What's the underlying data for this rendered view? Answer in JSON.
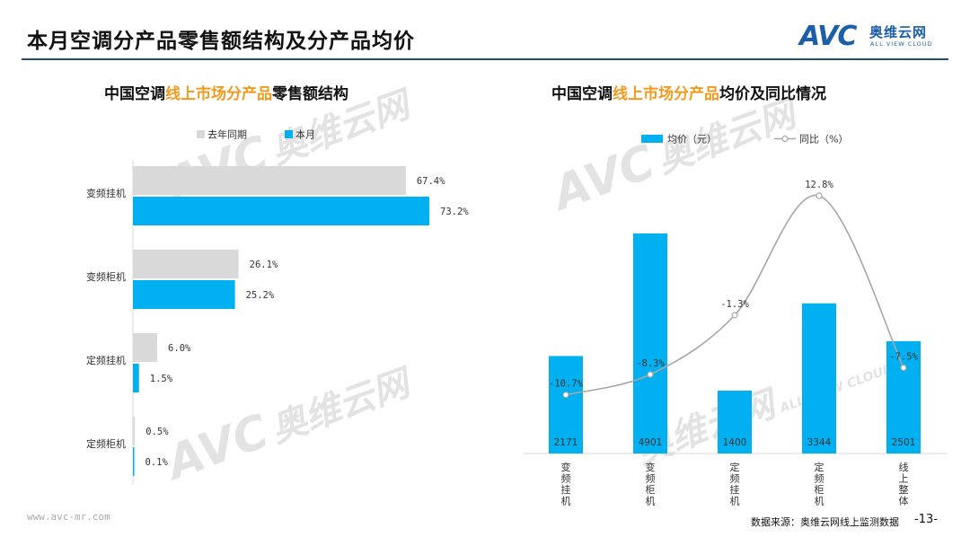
{
  "page": {
    "title": "本月空调分产品零售额结构及分产品均价",
    "logo_letters": "AVC",
    "logo_cn": "奥维云网",
    "logo_en": "ALL VIEW CLOUD",
    "watermark_logo": "AVC",
    "watermark_cn": "奥维云网",
    "watermark_en": "ALL VIEW CLOUD",
    "footer_url": "www.avc-mr.com",
    "footer_source": "数据来源：奥维云网线上监测数据",
    "page_number": "-13-"
  },
  "left_chart": {
    "title_pre": "中国空调",
    "title_highlight": "线上市场分产品",
    "title_post": "零售额结构"
  },
  "right_chart": {
    "title_pre": "中国空调",
    "title_highlight": "线上市场分产品",
    "title_post": "均价及同比情况"
  },
  "chart_data": [
    {
      "type": "bar",
      "orientation": "horizontal",
      "categories": [
        "变频挂机",
        "变频柜机",
        "定频挂机",
        "定频柜机"
      ],
      "series": [
        {
          "name": "去年同期",
          "values": [
            67.4,
            26.1,
            6.0,
            0.5
          ],
          "labels": [
            "67.4%",
            "26.1%",
            "6.0%",
            "0.5%"
          ],
          "color": "#d9d9d9"
        },
        {
          "name": "本月",
          "values": [
            73.2,
            25.2,
            1.5,
            0.1
          ],
          "labels": [
            "73.2%",
            "25.2%",
            "1.5%",
            "0.1%"
          ],
          "color": "#00b0f0"
        }
      ],
      "xlim": [
        0,
        100
      ],
      "legend_position": "top-left"
    },
    {
      "type": "bar+line",
      "categories": [
        "变频挂机",
        "变频柜机",
        "定频挂机",
        "定频柜机",
        "线上整体"
      ],
      "series": [
        {
          "name": "均价（元）",
          "type": "bar",
          "values": [
            2171,
            4901,
            1400,
            3344,
            2501
          ],
          "color": "#00b0f0"
        },
        {
          "name": "同比（%）",
          "type": "line",
          "values": [
            -10.7,
            -8.3,
            -1.3,
            12.8,
            -7.5
          ],
          "labels": [
            "-10.7%",
            "-8.3%",
            "-1.3%",
            "12.8%",
            "-7.5%"
          ],
          "color": "#a6a6a6"
        }
      ],
      "bar_ylim": [
        0,
        5500
      ],
      "line_ylim": [
        -16,
        16
      ],
      "legend_position": "top-center"
    }
  ]
}
